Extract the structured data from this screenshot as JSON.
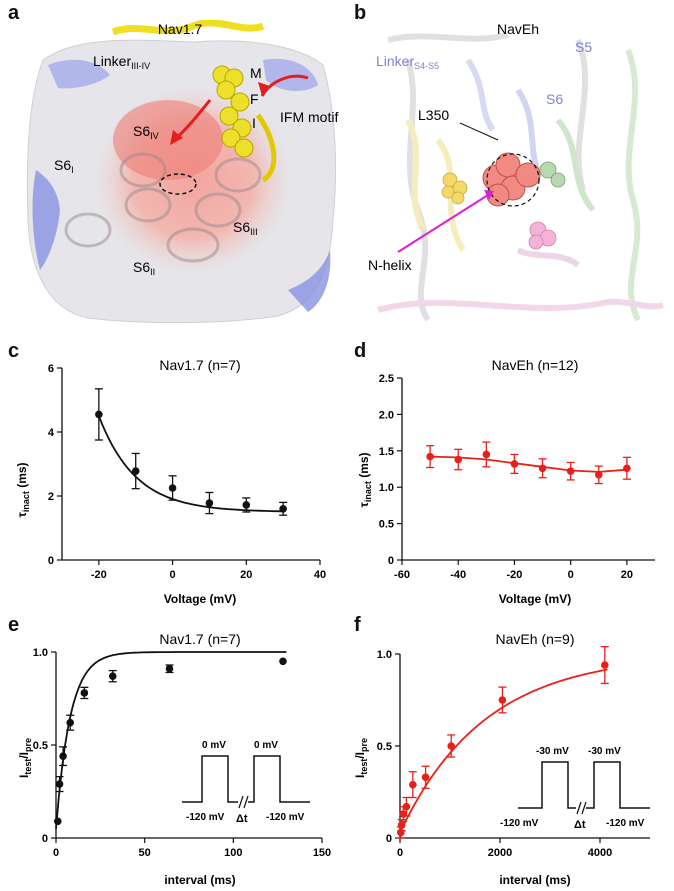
{
  "panels": {
    "a": {
      "letter": "a",
      "title": "Nav1.7",
      "labels": {
        "linker_main": "Linker",
        "linker_sub": "III-IV",
        "s6iv_main": "S6",
        "s6iv_sub": "IV",
        "s6i_main": "S6",
        "s6i_sub": "I",
        "s6ii_main": "S6",
        "s6ii_sub": "II",
        "s6iii_main": "S6",
        "s6iii_sub": "III",
        "m": "M",
        "f": "F",
        "i": "I",
        "ifm": "IFM motif"
      }
    },
    "b": {
      "letter": "b",
      "title": "NavEh",
      "labels": {
        "linker_main": "Linker",
        "linker_sub": "S4-S5",
        "s5": "S5",
        "s6": "S6",
        "l350": "L350",
        "nhelix": "N-helix"
      }
    },
    "c": {
      "letter": "c"
    },
    "d": {
      "letter": "d"
    },
    "e": {
      "letter": "e",
      "inset": {
        "v_hold_left": "-120 mV",
        "v_pulse1": "0 mV",
        "v_pulse2": "0 mV",
        "dt": "Δt",
        "v_hold_right": "-120 mV"
      }
    },
    "f": {
      "letter": "f",
      "inset": {
        "v_hold_left": "-120 mV",
        "v_pulse1": "-30 mV",
        "v_pulse2": "-30 mV",
        "dt": "Δt",
        "v_hold_right": "-120 mV"
      }
    }
  },
  "chart_data": [
    {
      "id": "c",
      "type": "scatter",
      "title": "Nav1.7 (n=7)",
      "xlabel": "Voltage (mV)",
      "ylabel_main": "τ",
      "ylabel_sub": "inact",
      "ylabel_unit": " (ms)",
      "xlim": [
        -30,
        40
      ],
      "ylim": [
        0,
        6
      ],
      "xticks": [
        -20,
        0,
        20,
        40
      ],
      "yticks": [
        0,
        2,
        4,
        6
      ],
      "color": "#111111",
      "series": [
        {
          "x": [
            -20,
            -10,
            0,
            10,
            20,
            30
          ],
          "y": [
            4.55,
            2.78,
            2.25,
            1.78,
            1.72,
            1.6
          ],
          "err": [
            0.8,
            0.55,
            0.38,
            0.33,
            0.22,
            0.2
          ]
        }
      ],
      "fit": {
        "model": "exponential decay",
        "y0": 1.5,
        "a": 3.0,
        "tau": 10,
        "x0": -20,
        "xmax": 30
      }
    },
    {
      "id": "d",
      "type": "scatter",
      "title": "NavEh (n=12)",
      "xlabel": "Voltage (mV)",
      "ylabel_main": "τ",
      "ylabel_sub": "inact",
      "ylabel_unit": " (ms)",
      "xlim": [
        -60,
        30
      ],
      "ylim": [
        0,
        2.5
      ],
      "xticks": [
        -60,
        -40,
        -20,
        0,
        20
      ],
      "yticks": [
        0,
        0.5,
        1.0,
        1.5,
        2.0,
        2.5
      ],
      "color": "#e8201a",
      "series": [
        {
          "x": [
            -50,
            -40,
            -30,
            -20,
            -10,
            0,
            10,
            20
          ],
          "y": [
            1.42,
            1.38,
            1.45,
            1.32,
            1.26,
            1.22,
            1.17,
            1.26
          ],
          "err": [
            0.15,
            0.14,
            0.17,
            0.13,
            0.13,
            0.12,
            0.12,
            0.15
          ]
        }
      ],
      "fit": {
        "model": "smooth",
        "x": [
          -50,
          -40,
          -30,
          -20,
          -10,
          0,
          10,
          20
        ],
        "y": [
          1.42,
          1.41,
          1.38,
          1.33,
          1.28,
          1.23,
          1.21,
          1.24
        ]
      }
    },
    {
      "id": "e",
      "type": "scatter",
      "title": "Nav1.7 (n=7)",
      "xlabel": "interval (ms)",
      "ylabel_main": "I",
      "ylabel_sub1": "test",
      "ylabel_mid": "/I",
      "ylabel_sub2": "pre",
      "xlim": [
        0,
        150
      ],
      "ylim": [
        0,
        1.0
      ],
      "xticks": [
        0,
        50,
        100,
        150
      ],
      "yticks": [
        0,
        0.5,
        1.0
      ],
      "color": "#111111",
      "series": [
        {
          "x": [
            1,
            2,
            4,
            8,
            16,
            32,
            64,
            128
          ],
          "y": [
            0.09,
            0.29,
            0.44,
            0.62,
            0.78,
            0.87,
            0.91,
            0.95
          ],
          "err": [
            0.0,
            0.04,
            0.05,
            0.04,
            0.03,
            0.03,
            0.02,
            0.0
          ]
        }
      ],
      "fit": {
        "model": "1 - exp(-t/tau)",
        "tau": 8,
        "offset": 0.05,
        "xmax": 130
      }
    },
    {
      "id": "f",
      "type": "scatter",
      "title": "NavEh (n=9)",
      "xlabel": "interval (ms)",
      "ylabel_main": "I",
      "ylabel_sub1": "test",
      "ylabel_mid": "/I",
      "ylabel_sub2": "pre",
      "xlim": [
        0,
        5000
      ],
      "ylim": [
        0,
        1.0
      ],
      "xticks": [
        0,
        2000,
        4000
      ],
      "yticks": [
        0,
        0.5,
        1.0
      ],
      "color": "#e8201a",
      "series": [
        {
          "x": [
            16,
            32,
            64,
            128,
            256,
            512,
            1024,
            2048,
            4096
          ],
          "y": [
            0.03,
            0.07,
            0.13,
            0.17,
            0.29,
            0.33,
            0.5,
            0.75,
            0.94
          ],
          "err": [
            0.03,
            0.03,
            0.04,
            0.05,
            0.07,
            0.06,
            0.06,
            0.07,
            0.1
          ]
        }
      ],
      "fit": {
        "model": "1 - exp(-t/tau)",
        "tau": 1700,
        "offset": 0.03,
        "xmax": 4150
      }
    }
  ]
}
